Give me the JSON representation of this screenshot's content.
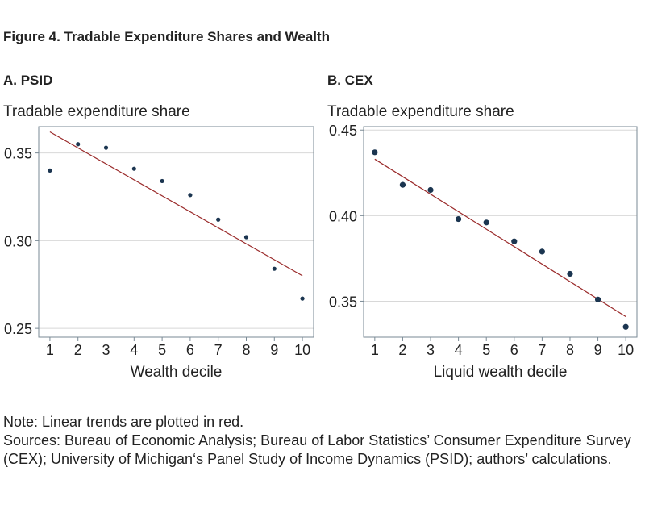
{
  "figure_title": "Figure 4. Tradable Expenditure Shares and Wealth",
  "notes": [
    "Note: Linear trends are plotted in red.",
    "Sources: Bureau of Economic Analysis; Bureau of Labor Statistics’ Consumer Expenditure Survey (CEX); University of Michigan‘s Panel Study of Income Dynamics (PSID); authors’ calculations."
  ],
  "colors": {
    "points": "#1b3550",
    "trend": "#9a2a2a",
    "axes": "#7a8a95",
    "grid": "#d8d8d8"
  },
  "chart_data": [
    {
      "type": "scatter",
      "title": "A. PSID",
      "ylabel": "Tradable expenditure share",
      "xlabel": "Wealth decile",
      "x": [
        1,
        2,
        3,
        4,
        5,
        6,
        7,
        8,
        9,
        10
      ],
      "y": [
        0.34,
        0.355,
        0.353,
        0.341,
        0.334,
        0.326,
        0.312,
        0.302,
        0.284,
        0.267
      ],
      "trend": [
        0.362,
        0.28
      ],
      "xlim": [
        0.6,
        10.4
      ],
      "ylim": [
        0.245,
        0.365
      ],
      "xticks": [
        "1",
        "2",
        "3",
        "4",
        "5",
        "6",
        "7",
        "8",
        "9",
        "10"
      ],
      "yticks": [
        0.25,
        0.3,
        0.35
      ],
      "ytick_labels": [
        "0.25",
        "0.30",
        "0.35"
      ],
      "grid": true
    },
    {
      "type": "scatter",
      "title": "B. CEX",
      "ylabel": "Tradable expenditure share",
      "xlabel": "Liquid wealth decile",
      "x": [
        1,
        2,
        3,
        4,
        5,
        6,
        7,
        8,
        9,
        10
      ],
      "y": [
        0.437,
        0.418,
        0.415,
        0.398,
        0.396,
        0.385,
        0.379,
        0.366,
        0.351,
        0.335
      ],
      "trend": [
        0.433,
        0.341
      ],
      "xlim": [
        0.6,
        10.4
      ],
      "ylim": [
        0.329,
        0.452
      ],
      "xticks": [
        "1",
        "2",
        "3",
        "4",
        "5",
        "6",
        "7",
        "8",
        "9",
        "10"
      ],
      "yticks": [
        0.35,
        0.4,
        0.45
      ],
      "ytick_labels": [
        "0.35",
        "0.40",
        "0.45"
      ],
      "grid": true
    }
  ]
}
